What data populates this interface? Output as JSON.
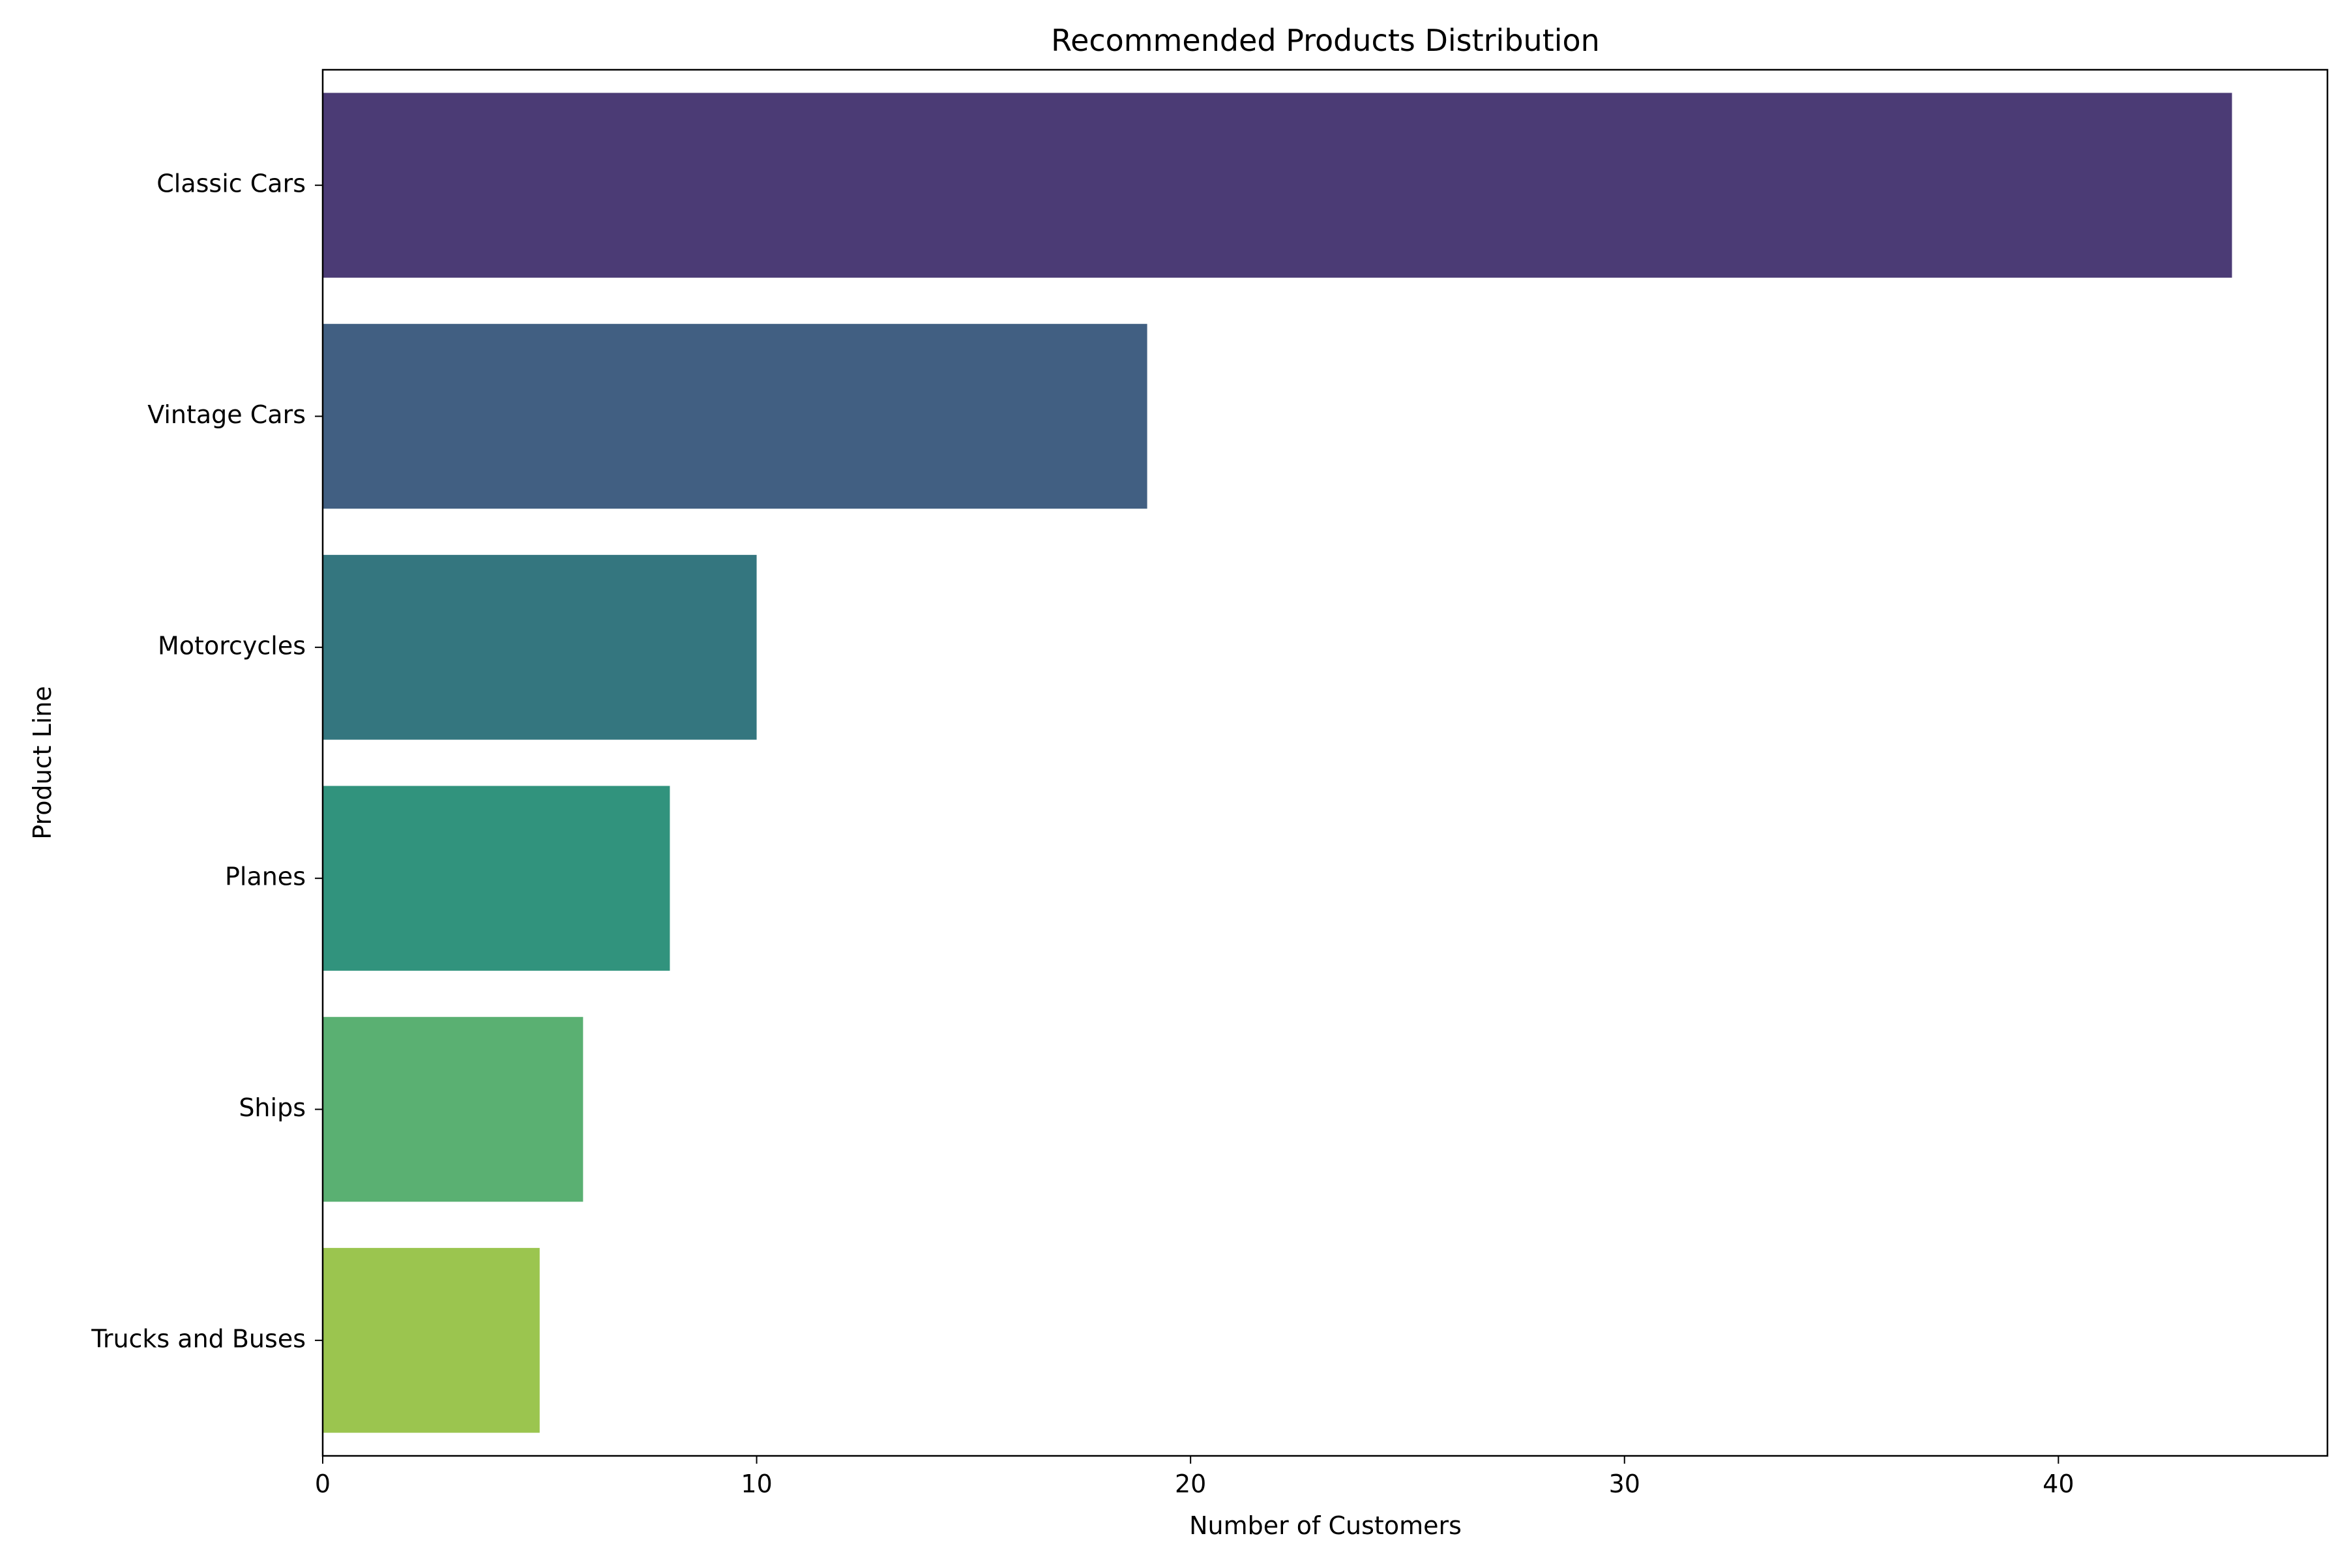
{
  "chart_data": {
    "type": "bar",
    "orientation": "horizontal",
    "title": "Recommended Products Distribution",
    "xlabel": "Number of Customers",
    "ylabel": "Product Line",
    "categories": [
      "Classic Cars",
      "Vintage Cars",
      "Motorcycles",
      "Planes",
      "Ships",
      "Trucks and Buses"
    ],
    "values": [
      44,
      19,
      10,
      8,
      6,
      5
    ],
    "colors": [
      "#4b3b75",
      "#415f82",
      "#34767f",
      "#31937d",
      "#5ab072",
      "#9bc54f"
    ],
    "xlim": [
      0,
      46.2
    ],
    "xticks": [
      0,
      10,
      20,
      30,
      40
    ],
    "grid": false,
    "legend": "none"
  }
}
